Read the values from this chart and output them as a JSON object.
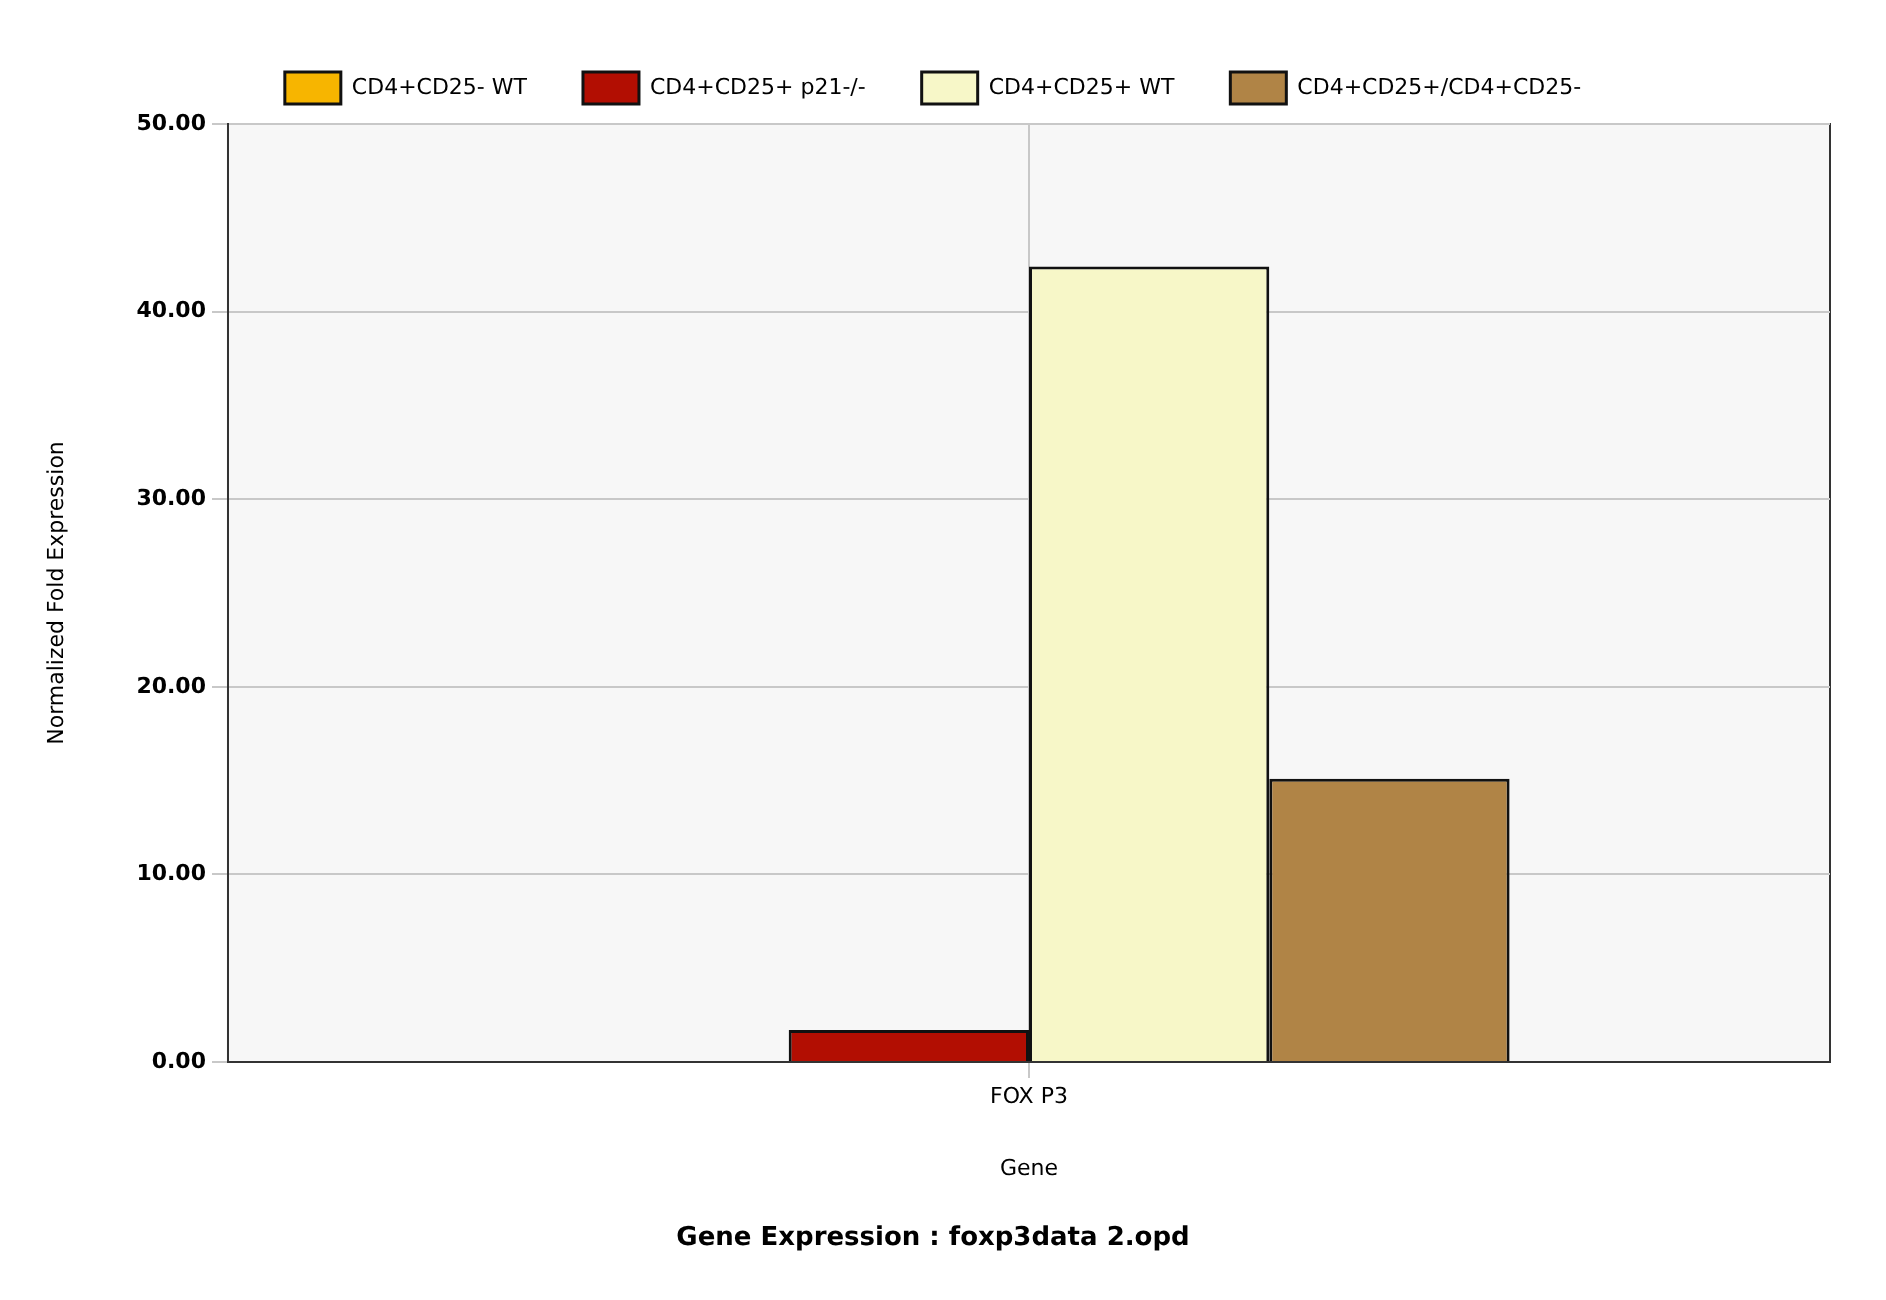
{
  "chart_data": {
    "type": "bar",
    "title": "Gene Expression : foxp3data 2.opd",
    "xlabel": "Gene",
    "ylabel": "Normalized Fold Expression",
    "categories": [
      "FOX P3"
    ],
    "series": [
      {
        "name": "CD4+CD25- WT",
        "color": "#f7b500",
        "values": [
          0
        ]
      },
      {
        "name": "CD4+CD25+ p21-/-",
        "color": "#b20e02",
        "values": [
          1.7
        ]
      },
      {
        "name": "CD4+CD25+ WT",
        "color": "#f7f7c8",
        "values": [
          42.4
        ]
      },
      {
        "name": "CD4+CD25+/CD4+CD25-",
        "color": "#b08446",
        "values": [
          15.1
        ]
      }
    ],
    "ylim": [
      0,
      50
    ],
    "yticks": [
      {
        "value": 0,
        "label": "0.00"
      },
      {
        "value": 10,
        "label": "10.00"
      },
      {
        "value": 20,
        "label": "20.00"
      },
      {
        "value": 30,
        "label": "30.00"
      },
      {
        "value": 40,
        "label": "40.00"
      },
      {
        "value": 50,
        "label": "50.00"
      }
    ],
    "grid": true,
    "legend": "top"
  }
}
